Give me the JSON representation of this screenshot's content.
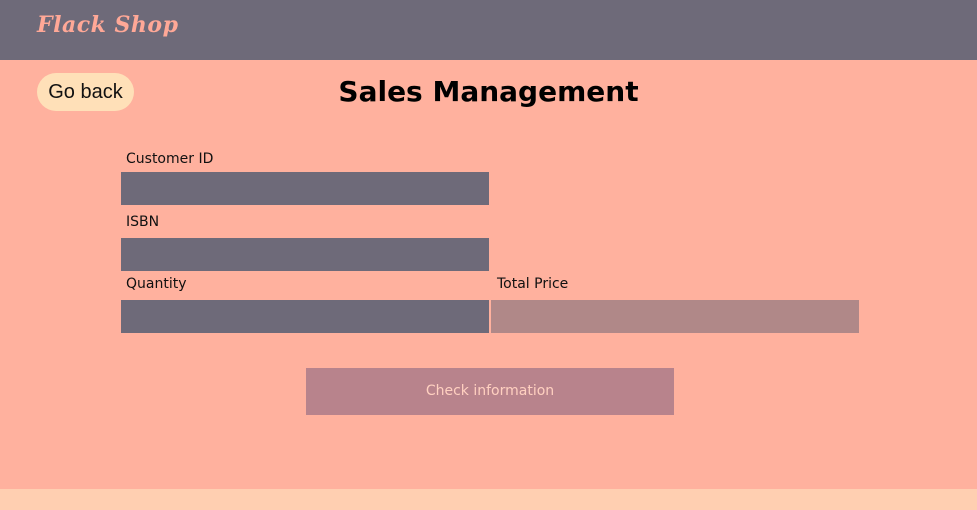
{
  "app": {
    "brand": "Flack Shop"
  },
  "header": {
    "back_label": "Go back",
    "title": "Sales Management"
  },
  "form": {
    "customer_id": {
      "label": "Customer ID",
      "value": ""
    },
    "isbn": {
      "label": "ISBN",
      "value": ""
    },
    "quantity": {
      "label": "Quantity",
      "value": ""
    },
    "total_price": {
      "label": "Total Price",
      "value": ""
    },
    "check_label": "Check information"
  },
  "colors": {
    "background": "#ffb19e",
    "topbar": "#6e6a79",
    "brand_text": "#ffa897",
    "back_button": "#ffe0b8",
    "input_dark": "#6e6a79",
    "input_readonly": "#b08888",
    "check_button": "#b8838c",
    "footer": "#ffcfb1"
  }
}
